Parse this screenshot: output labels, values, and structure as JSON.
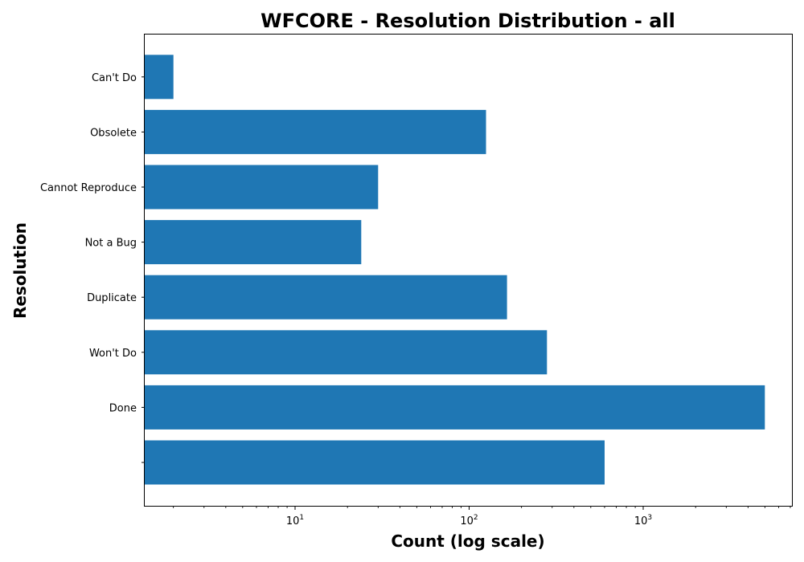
{
  "chart_data": {
    "type": "bar",
    "orientation": "horizontal",
    "title": "WFCORE - Resolution Distribution - all",
    "xlabel": "Count (log scale)",
    "ylabel": "Resolution",
    "xscale": "log",
    "xlim": [
      1.5,
      8000
    ],
    "x_ticks": [
      {
        "value": 10,
        "base": "10",
        "exp": "1"
      },
      {
        "value": 100,
        "base": "10",
        "exp": "2"
      },
      {
        "value": 1000,
        "base": "10",
        "exp": "3"
      }
    ],
    "categories": [
      "",
      "Done",
      "Won't Do",
      "Duplicate",
      "Not a Bug",
      "Cannot Reproduce",
      "Obsolete",
      "Can't Do"
    ],
    "values": [
      600,
      5000,
      280,
      165,
      24,
      30,
      125,
      2
    ],
    "color": "#1f77b4",
    "grid": false
  }
}
